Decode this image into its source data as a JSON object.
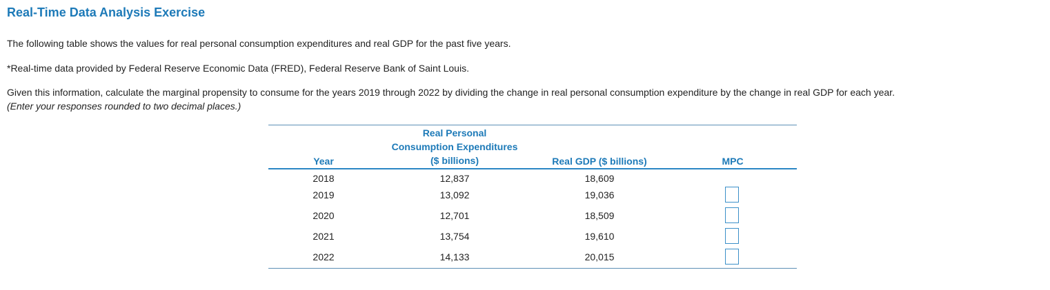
{
  "title": "Real-Time Data Analysis Exercise",
  "intro": "The following table shows the values for real personal consumption expenditures and real GDP for the past five years.",
  "source_note": "*Real-time data provided by Federal Reserve Economic Data (FRED), Federal Reserve Bank of Saint Louis.",
  "instruction": "Given this information, calculate the marginal propensity to consume for the years 2019 through 2022 by dividing the change in real personal consumption expenditure by the change in real GDP for each year.",
  "instruction_note": "(Enter your responses rounded to two decimal places.)",
  "table": {
    "headers": {
      "year": "Year",
      "pce_line1": "Real Personal",
      "pce_line2": "Consumption Expenditures",
      "pce_line3": "($ billions)",
      "gdp": "Real GDP ($ billions)",
      "mpc": "MPC"
    },
    "rows": [
      {
        "year": "2018",
        "pce": "12,837",
        "gdp": "18,609",
        "mpc": null
      },
      {
        "year": "2019",
        "pce": "13,092",
        "gdp": "19,036",
        "mpc": ""
      },
      {
        "year": "2020",
        "pce": "12,701",
        "gdp": "18,509",
        "mpc": ""
      },
      {
        "year": "2021",
        "pce": "13,754",
        "gdp": "19,610",
        "mpc": ""
      },
      {
        "year": "2022",
        "pce": "14,133",
        "gdp": "20,015",
        "mpc": ""
      }
    ]
  }
}
